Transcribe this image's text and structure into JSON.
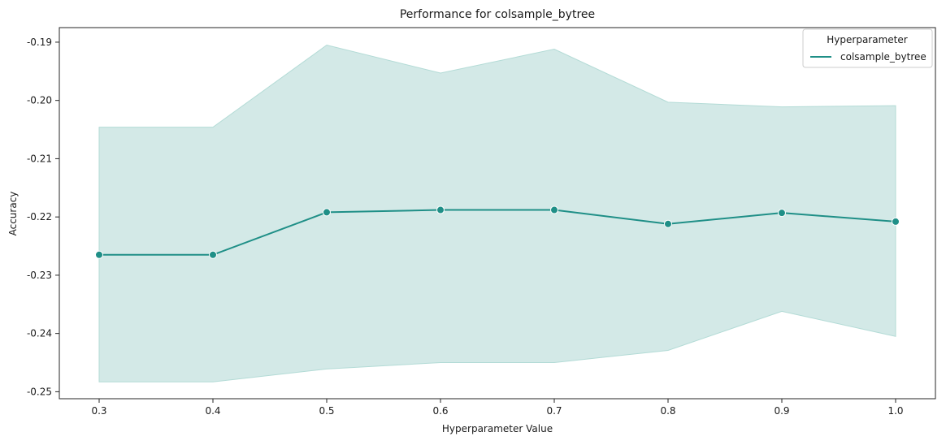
{
  "chart_data": {
    "type": "line",
    "title": "Performance for colsample_bytree",
    "xlabel": "Hyperparameter Value",
    "ylabel": "Accuracy",
    "x": [
      0.3,
      0.4,
      0.5,
      0.6,
      0.7,
      0.8,
      0.9,
      1.0
    ],
    "x_tick_labels": [
      "0.3",
      "0.4",
      "0.5",
      "0.6",
      "0.7",
      "0.8",
      "0.9",
      "1.0"
    ],
    "y_ticks": [
      -0.19,
      -0.2,
      -0.21,
      -0.22,
      -0.23,
      -0.24,
      -0.25
    ],
    "y_tick_labels": [
      "-0.19",
      "-0.20",
      "-0.21",
      "-0.22",
      "-0.23",
      "-0.24",
      "-0.25"
    ],
    "xlim": [
      0.265,
      1.035
    ],
    "ylim": [
      -0.2512,
      -0.1875
    ],
    "grid": false,
    "legend": {
      "title": "Hyperparameter",
      "placement": "top-right"
    },
    "series": [
      {
        "name": "colsample_bytree",
        "color": "#1f8f87",
        "values": [
          -0.2265,
          -0.2265,
          -0.2192,
          -0.2188,
          -0.2188,
          -0.2212,
          -0.2193,
          -0.2208
        ],
        "ci_upper": [
          -0.2046,
          -0.2046,
          -0.1905,
          -0.1953,
          -0.1912,
          -0.2003,
          -0.2011,
          -0.2009
        ],
        "ci_lower": [
          -0.2483,
          -0.2483,
          -0.2461,
          -0.245,
          -0.245,
          -0.2429,
          -0.2362,
          -0.2405
        ],
        "band_color": "#d3e9e7",
        "band_edge_color": "#b3dbd6"
      }
    ]
  }
}
